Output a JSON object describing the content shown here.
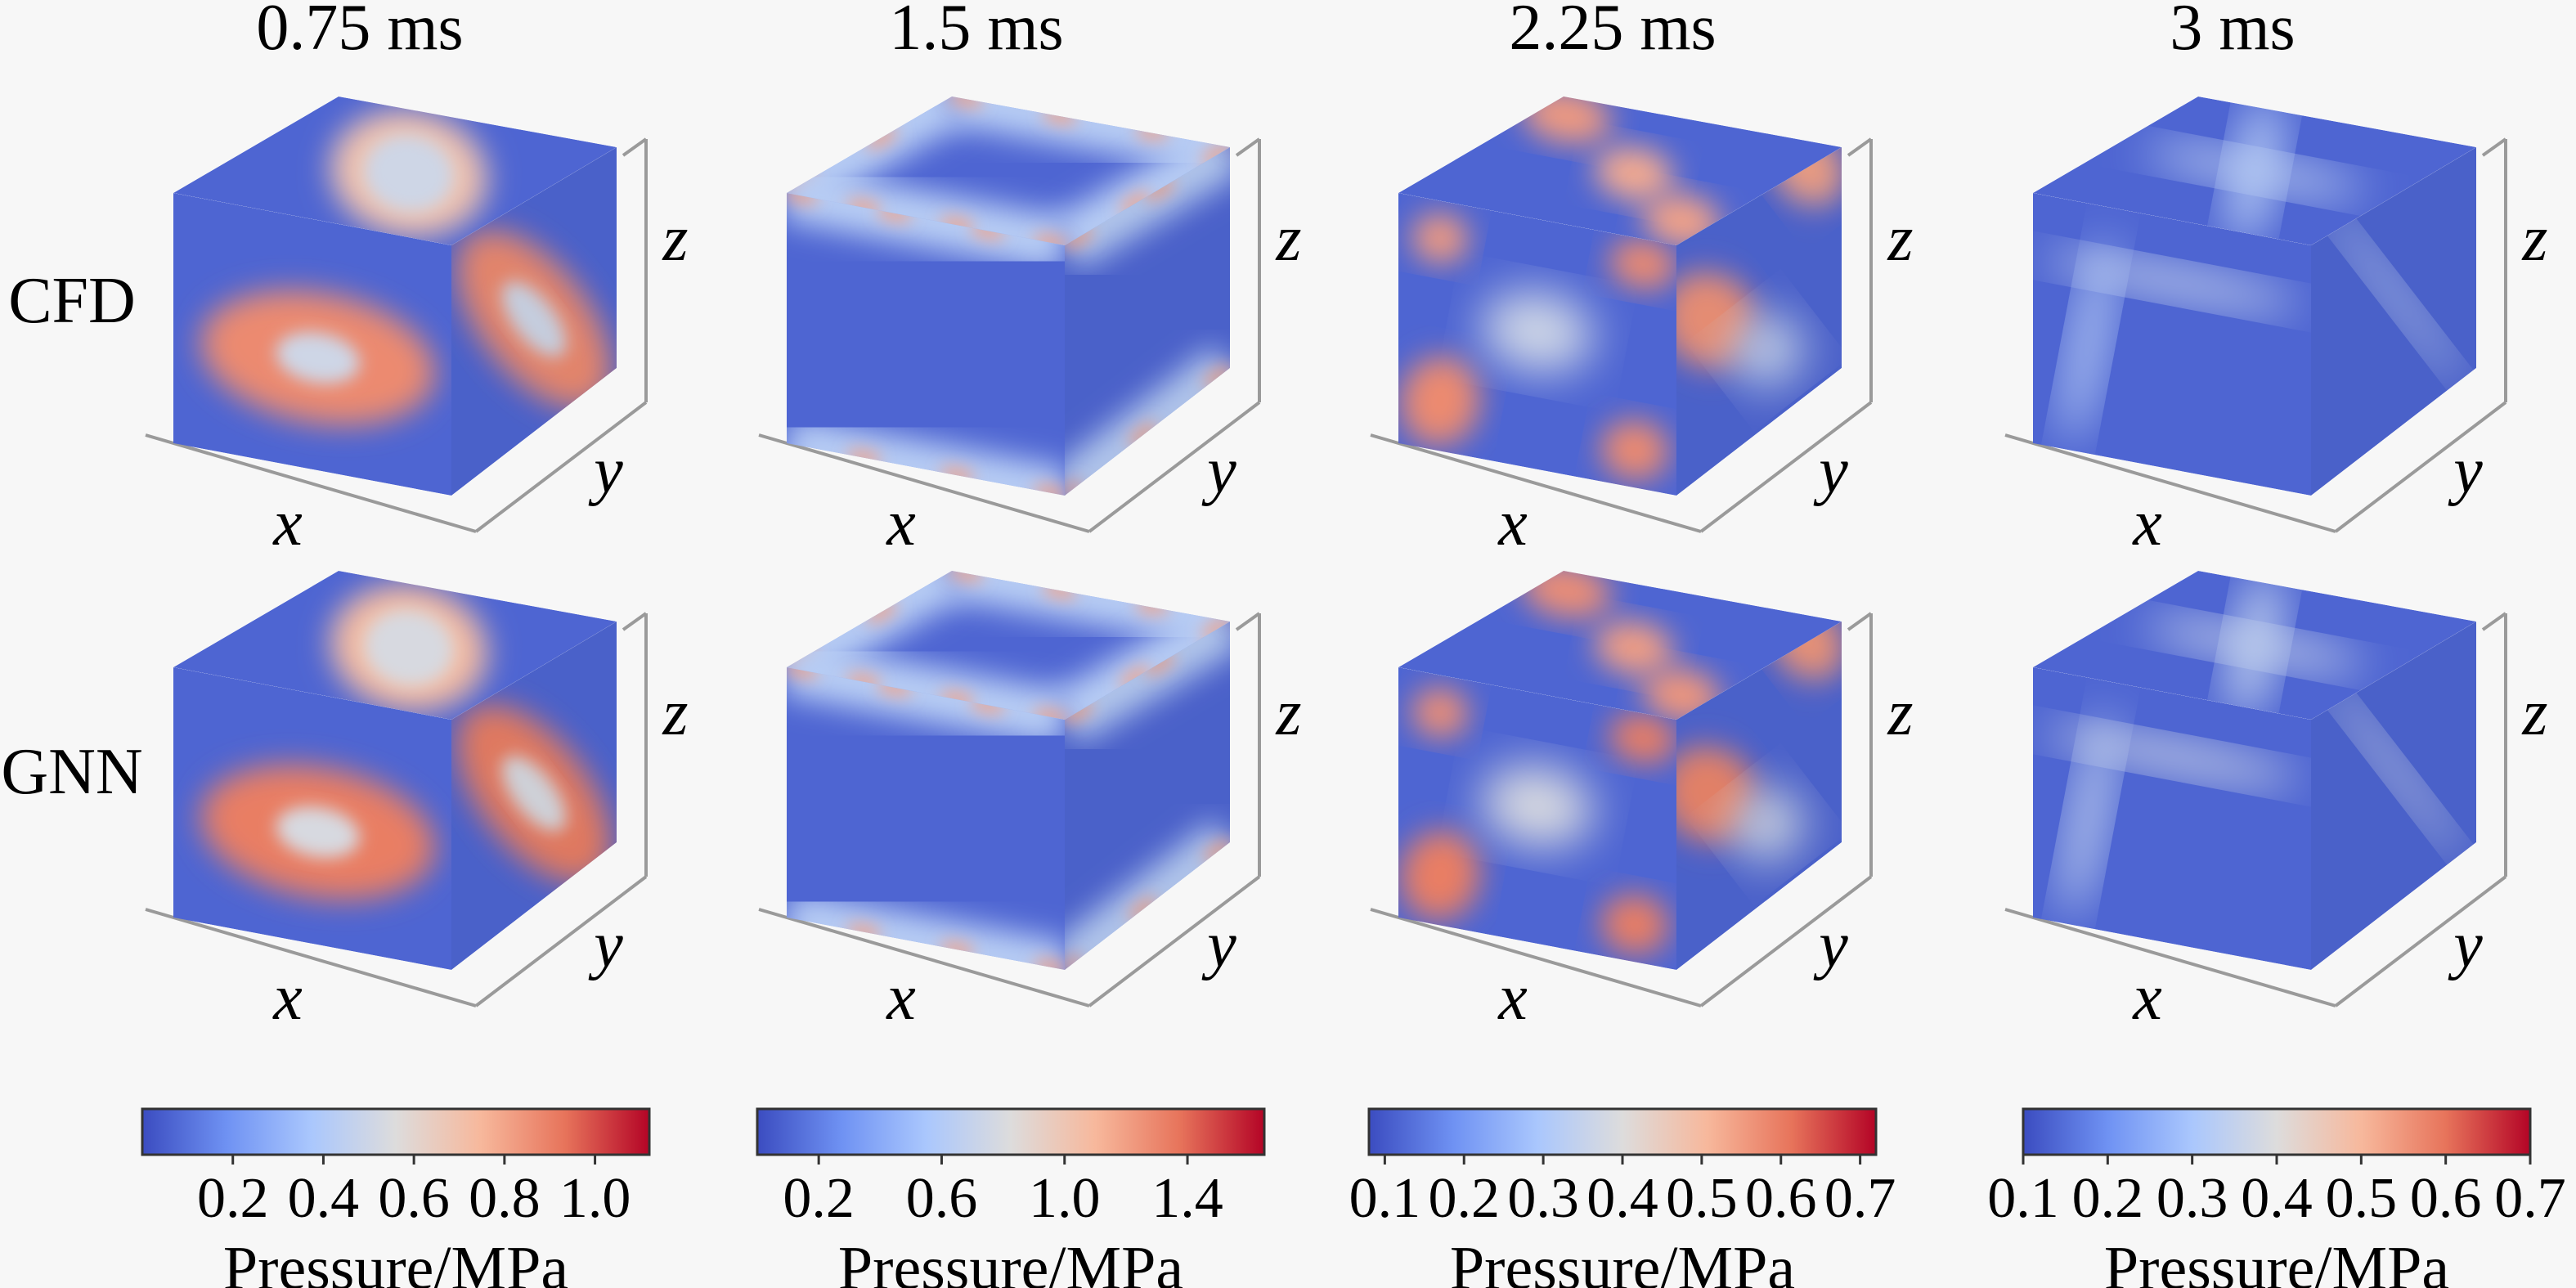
{
  "chart_data": {
    "type": "heatmap",
    "columns": [
      "0.75 ms",
      "1.5 ms",
      "2.25 ms",
      "3 ms"
    ],
    "rows": [
      "CFD",
      "GNN"
    ],
    "axis_labels": {
      "x": "x",
      "y": "y",
      "z": "z"
    },
    "colorbar_label": "Pressure/MPa",
    "colormap": [
      "#3b4cc0",
      "#6f92f3",
      "#aac7fd",
      "#dddcdc",
      "#f7b89c",
      "#e7745b",
      "#b40426"
    ],
    "colorbars": [
      {
        "min": 0.0,
        "max": 1.12,
        "ticks": [
          "0.2",
          "0.4",
          "0.6",
          "0.8",
          "1.0"
        ],
        "tick_values": [
          0.2,
          0.4,
          0.6,
          0.8,
          1.0
        ]
      },
      {
        "min": 0.0,
        "max": 1.65,
        "ticks": [
          "0.2",
          "0.6",
          "1.0",
          "1.4"
        ],
        "tick_values": [
          0.2,
          0.6,
          1.0,
          1.4
        ]
      },
      {
        "min": 0.08,
        "max": 0.72,
        "ticks": [
          "0.1",
          "0.2",
          "0.3",
          "0.4",
          "0.5",
          "0.6",
          "0.7"
        ],
        "tick_values": [
          0.1,
          0.2,
          0.3,
          0.4,
          0.5,
          0.6,
          0.7
        ]
      },
      {
        "min": 0.1,
        "max": 0.7,
        "ticks": [
          "0.1",
          "0.2",
          "0.3",
          "0.4",
          "0.5",
          "0.6",
          "0.7"
        ],
        "tick_values": [
          0.1,
          0.2,
          0.3,
          0.4,
          0.5,
          0.6,
          0.7
        ]
      }
    ]
  }
}
